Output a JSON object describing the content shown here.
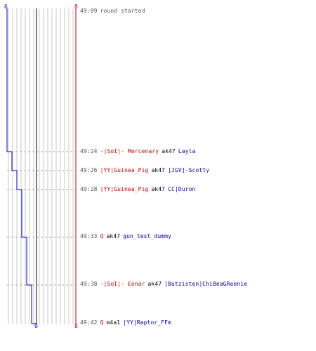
{
  "scoreboard": {
    "left_score_top": "6",
    "right_score_top": "8",
    "left_score_bottom": "0",
    "right_score_bottom": "8",
    "colors": {
      "team_blue": "#0000cc",
      "team_red": "#cc0000",
      "grid": "#c8c8c8",
      "center_line": "#808080",
      "time_text": "#555555"
    }
  },
  "events": [
    {
      "time": "49:09",
      "kind": "message",
      "text": "round started"
    },
    {
      "time": "49:24",
      "kind": "kill",
      "killer": "-|SoI|- Mercenary",
      "killer_team": "red",
      "weapon": "ak47",
      "victim": "Layla",
      "victim_team": "blue"
    },
    {
      "time": "49:26",
      "kind": "kill",
      "killer": "|YY|Guinea_Pig",
      "killer_team": "red",
      "weapon": "ak47",
      "victim": "[JGV]-Scotty",
      "victim_team": "blue"
    },
    {
      "time": "49:28",
      "kind": "kill",
      "killer": "|YY|Guinea_Pig",
      "killer_team": "red",
      "weapon": "ak47",
      "victim": "CC|Duron",
      "victim_team": "blue"
    },
    {
      "time": "49:33",
      "kind": "kill",
      "killer": "Q",
      "killer_team": "red",
      "weapon": "ak47",
      "victim": "gun_test_dummy",
      "victim_team": "blue"
    },
    {
      "time": "49:38",
      "kind": "kill",
      "killer": "-|SoI|- Eonar",
      "killer_team": "red",
      "weapon": "ak47",
      "victim": "[Butzisten]ChiBeaGReenie",
      "victim_team": "blue"
    },
    {
      "time": "49:42",
      "kind": "kill",
      "killer": "Q",
      "killer_team": "red",
      "weapon": "m4a1",
      "victim": "|YY|Raptor_FFm",
      "victim_team": "blue"
    }
  ]
}
